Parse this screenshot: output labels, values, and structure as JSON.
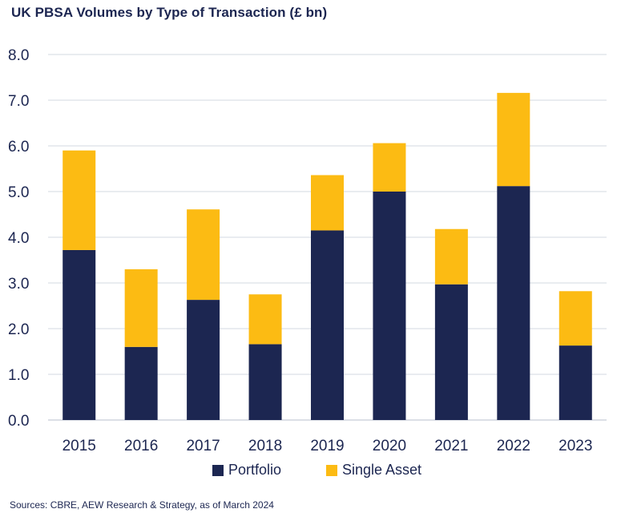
{
  "chart_data": {
    "type": "bar",
    "stacked": true,
    "title": "UK PBSA Volumes by Type of Transaction (£ bn)",
    "categories": [
      "2015",
      "2016",
      "2017",
      "2018",
      "2019",
      "2020",
      "2021",
      "2022",
      "2023"
    ],
    "series": [
      {
        "name": "Portfolio",
        "color": "#1c2651",
        "values": [
          3.72,
          1.6,
          2.63,
          1.66,
          4.15,
          5.0,
          2.97,
          5.12,
          1.63
        ]
      },
      {
        "name": "Single Asset",
        "color": "#fcbb13",
        "values": [
          2.18,
          1.7,
          1.98,
          1.09,
          1.21,
          1.06,
          1.21,
          2.04,
          1.19
        ]
      }
    ],
    "ylim": [
      0,
      8
    ],
    "yticks": [
      "0.0",
      "1.0",
      "2.0",
      "3.0",
      "4.0",
      "5.0",
      "6.0",
      "7.0",
      "8.0"
    ],
    "grid": true,
    "legend_position": "bottom-center"
  },
  "source": "Sources: CBRE, AEW Research & Strategy, as of March 2024"
}
